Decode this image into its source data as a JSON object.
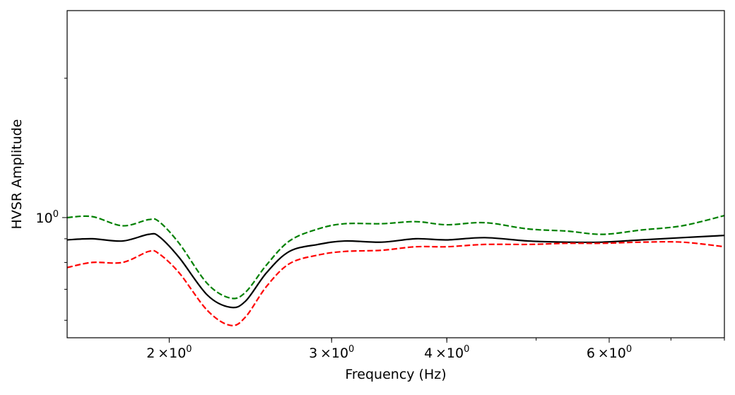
{
  "chart_data": {
    "type": "line",
    "title": "",
    "xlabel": "Frequency (Hz)",
    "ylabel": "HVSR Amplitude",
    "xscale": "log",
    "yscale": "log",
    "xlim": [
      1.55,
      8.0
    ],
    "ylim": [
      0.55,
      2.8
    ],
    "grid": false,
    "legend": "none",
    "x_ticks": [
      {
        "value": 2,
        "base": "2",
        "label": "×10"
      },
      {
        "value": 3,
        "base": "3",
        "label": "×10"
      },
      {
        "value": 4,
        "base": "4",
        "label": "×10"
      },
      {
        "value": 6,
        "base": "6",
        "label": "×10"
      }
    ],
    "x_tick_exponent": "0",
    "y_ticks": [
      {
        "value": 1,
        "base": "10",
        "exponent": "0"
      }
    ],
    "series": [
      {
        "color": "#008000",
        "linestyle": "dashed",
        "x": [
          1.55,
          1.65,
          1.78,
          1.9,
          1.95,
          2.05,
          2.2,
          2.33,
          2.42,
          2.55,
          2.7,
          2.9,
          3.1,
          3.4,
          3.7,
          4.0,
          4.4,
          4.9,
          5.4,
          5.9,
          6.5,
          7.2,
          8.0
        ],
        "y": [
          1.0,
          1.005,
          0.96,
          0.99,
          0.98,
          0.88,
          0.72,
          0.67,
          0.69,
          0.79,
          0.89,
          0.945,
          0.97,
          0.97,
          0.98,
          0.965,
          0.975,
          0.945,
          0.935,
          0.92,
          0.94,
          0.96,
          1.01
        ]
      },
      {
        "color": "#000000",
        "linestyle": "solid",
        "x": [
          1.55,
          1.65,
          1.78,
          1.9,
          1.95,
          2.05,
          2.2,
          2.33,
          2.42,
          2.55,
          2.7,
          2.9,
          3.1,
          3.4,
          3.7,
          4.0,
          4.4,
          4.9,
          5.4,
          5.9,
          6.5,
          7.2,
          8.0
        ],
        "y": [
          0.895,
          0.9,
          0.89,
          0.92,
          0.91,
          0.82,
          0.68,
          0.64,
          0.66,
          0.76,
          0.845,
          0.875,
          0.89,
          0.885,
          0.9,
          0.895,
          0.905,
          0.89,
          0.885,
          0.885,
          0.895,
          0.905,
          0.915
        ]
      },
      {
        "color": "#ff0000",
        "linestyle": "dashed",
        "x": [
          1.55,
          1.65,
          1.78,
          1.9,
          1.95,
          2.05,
          2.2,
          2.33,
          2.42,
          2.55,
          2.7,
          2.9,
          3.1,
          3.4,
          3.7,
          4.0,
          4.4,
          4.9,
          5.4,
          5.9,
          6.5,
          7.2,
          8.0
        ],
        "y": [
          0.78,
          0.8,
          0.8,
          0.845,
          0.835,
          0.76,
          0.63,
          0.585,
          0.61,
          0.71,
          0.795,
          0.83,
          0.845,
          0.85,
          0.865,
          0.865,
          0.875,
          0.875,
          0.88,
          0.88,
          0.885,
          0.885,
          0.865
        ]
      }
    ]
  }
}
